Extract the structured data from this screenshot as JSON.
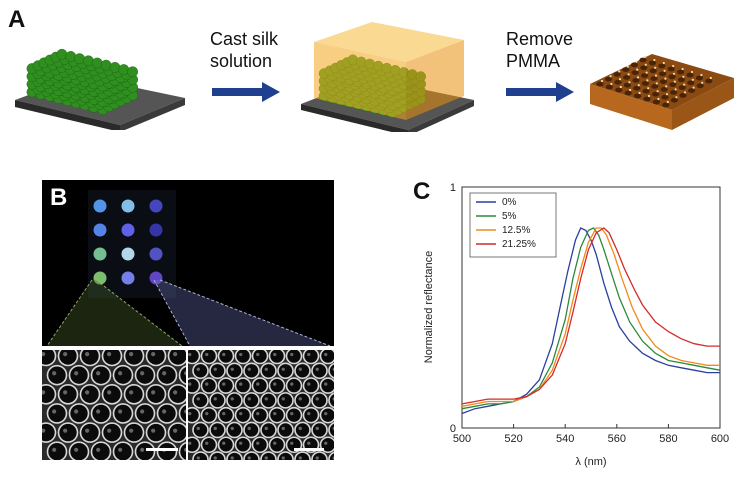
{
  "panel_a": {
    "letter": "A",
    "step1": [
      "Cast silk",
      "solution"
    ],
    "step2": [
      "Remove",
      "PMMA"
    ]
  },
  "panel_b": {
    "letter": "B"
  },
  "panel_c": {
    "letter": "C"
  },
  "colors": {
    "sphere_green": "#2f8f1f",
    "silk_orange": "#f2a51c",
    "inverse_brown": "#b8681e",
    "substrate": "#3b3b3b",
    "arrow": "#1f3f8f"
  },
  "chart_data": {
    "type": "line",
    "xlabel": "λ (nm)",
    "ylabel": "Normalized reflectance",
    "xlim": [
      500,
      600
    ],
    "ylim": [
      0,
      1
    ],
    "xticks": [
      "500",
      "520",
      "540",
      "560",
      "580",
      "600"
    ],
    "yticks": [
      "0",
      "1"
    ],
    "legend_position": "top-left",
    "grid": false,
    "series": [
      {
        "name": "0%",
        "color": "#2b3f9e",
        "x": [
          500,
          505,
          510,
          515,
          520,
          525,
          530,
          535,
          538,
          541,
          544,
          546,
          548,
          550,
          552,
          555,
          558,
          561,
          565,
          570,
          575,
          580,
          585,
          590,
          595,
          600
        ],
        "y": [
          0.06,
          0.08,
          0.09,
          0.1,
          0.11,
          0.14,
          0.2,
          0.35,
          0.5,
          0.65,
          0.78,
          0.83,
          0.82,
          0.78,
          0.72,
          0.6,
          0.5,
          0.42,
          0.36,
          0.31,
          0.28,
          0.26,
          0.25,
          0.24,
          0.23,
          0.23
        ]
      },
      {
        "name": "5%",
        "color": "#2a8a3a",
        "x": [
          500,
          505,
          510,
          515,
          520,
          525,
          530,
          535,
          540,
          543,
          546,
          549,
          551,
          553,
          555,
          558,
          561,
          565,
          570,
          575,
          580,
          585,
          590,
          595,
          600
        ],
        "y": [
          0.08,
          0.09,
          0.1,
          0.1,
          0.11,
          0.13,
          0.17,
          0.27,
          0.45,
          0.62,
          0.75,
          0.82,
          0.83,
          0.8,
          0.74,
          0.64,
          0.54,
          0.44,
          0.36,
          0.31,
          0.28,
          0.27,
          0.26,
          0.25,
          0.24
        ]
      },
      {
        "name": "12.5%",
        "color": "#f08a1c",
        "x": [
          500,
          505,
          510,
          515,
          520,
          525,
          530,
          535,
          540,
          543,
          546,
          549,
          552,
          554,
          556,
          559,
          562,
          566,
          570,
          575,
          580,
          585,
          590,
          595,
          600
        ],
        "y": [
          0.09,
          0.1,
          0.11,
          0.11,
          0.11,
          0.13,
          0.16,
          0.24,
          0.39,
          0.53,
          0.66,
          0.77,
          0.83,
          0.83,
          0.8,
          0.72,
          0.62,
          0.5,
          0.41,
          0.34,
          0.3,
          0.28,
          0.27,
          0.26,
          0.26
        ]
      },
      {
        "name": "21.25%",
        "color": "#d42a2a",
        "x": [
          500,
          505,
          510,
          515,
          520,
          525,
          530,
          535,
          540,
          543,
          546,
          549,
          552,
          555,
          557,
          560,
          563,
          567,
          570,
          575,
          580,
          585,
          590,
          595,
          600
        ],
        "y": [
          0.1,
          0.11,
          0.12,
          0.12,
          0.12,
          0.13,
          0.16,
          0.22,
          0.35,
          0.48,
          0.62,
          0.74,
          0.81,
          0.83,
          0.81,
          0.74,
          0.66,
          0.57,
          0.51,
          0.44,
          0.4,
          0.37,
          0.35,
          0.34,
          0.34
        ]
      }
    ]
  }
}
